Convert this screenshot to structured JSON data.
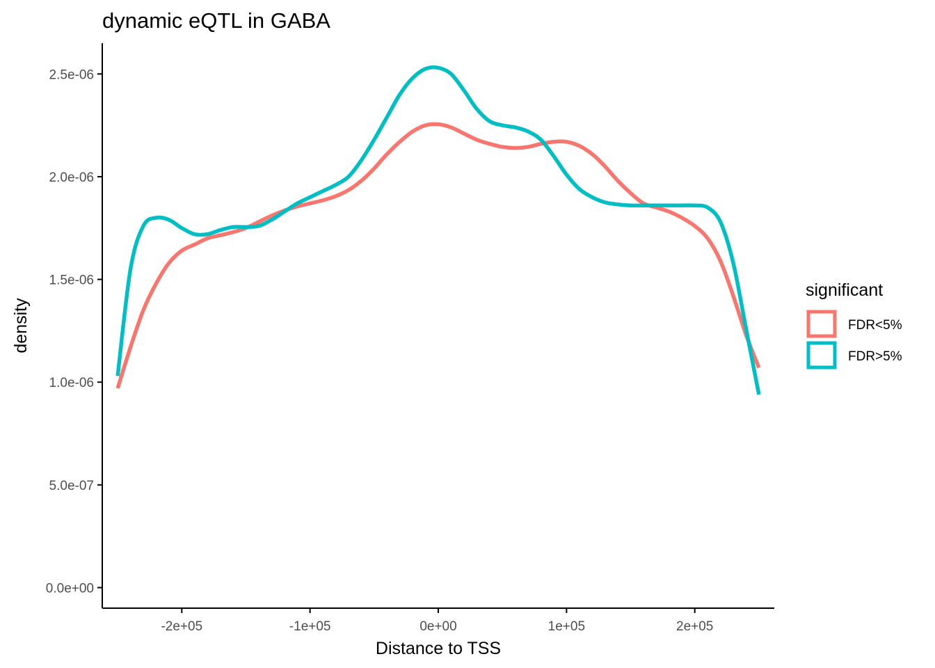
{
  "chart_data": {
    "type": "line",
    "title": "dynamic eQTL in GABA",
    "xlabel": "Distance to TSS",
    "ylabel": "density",
    "xlim": [
      -262000,
      262000
    ],
    "ylim": [
      -100000000,
      2650000000
    ],
    "x_ticks": [
      {
        "value": -200000,
        "label": "-2e+05"
      },
      {
        "value": -100000,
        "label": "-1e+05"
      },
      {
        "value": 0,
        "label": "0e+00"
      },
      {
        "value": 100000,
        "label": "1e+05"
      },
      {
        "value": 200000,
        "label": "2e+05"
      }
    ],
    "y_ticks": [
      {
        "value": 0,
        "label": "0.0e+00"
      },
      {
        "value": 500000000,
        "label": "5.0e-07"
      },
      {
        "value": 1000000000,
        "label": "1.0e-06"
      },
      {
        "value": 1500000000,
        "label": "1.5e-06"
      },
      {
        "value": 2000000000,
        "label": "2.0e-06"
      },
      {
        "value": 2500000000,
        "label": "2.5e-06"
      }
    ],
    "y_scale_note": "y values stored as density x 1e15",
    "grid": false,
    "legend": {
      "title": "significant",
      "position": "right"
    },
    "series": [
      {
        "name": "FDR<5%",
        "color": "#F8766D",
        "x": [
          -250000,
          -240000,
          -230000,
          -220000,
          -210000,
          -200000,
          -190000,
          -180000,
          -170000,
          -160000,
          -150000,
          -140000,
          -130000,
          -120000,
          -110000,
          -100000,
          -90000,
          -80000,
          -70000,
          -60000,
          -50000,
          -40000,
          -30000,
          -20000,
          -10000,
          0,
          10000,
          20000,
          30000,
          40000,
          50000,
          60000,
          70000,
          80000,
          90000,
          100000,
          110000,
          120000,
          130000,
          140000,
          150000,
          160000,
          170000,
          180000,
          190000,
          200000,
          210000,
          220000,
          230000,
          240000,
          250000
        ],
        "y": [
          970000000,
          1170000000,
          1350000000,
          1480000000,
          1580000000,
          1640000000,
          1670000000,
          1700000000,
          1715000000,
          1730000000,
          1750000000,
          1780000000,
          1810000000,
          1835000000,
          1855000000,
          1870000000,
          1885000000,
          1905000000,
          1935000000,
          1980000000,
          2040000000,
          2110000000,
          2170000000,
          2220000000,
          2250000000,
          2255000000,
          2240000000,
          2210000000,
          2180000000,
          2160000000,
          2145000000,
          2140000000,
          2145000000,
          2160000000,
          2170000000,
          2170000000,
          2150000000,
          2110000000,
          2050000000,
          1980000000,
          1920000000,
          1870000000,
          1850000000,
          1830000000,
          1800000000,
          1760000000,
          1700000000,
          1590000000,
          1420000000,
          1230000000,
          1070000000
        ]
      },
      {
        "name": "FDR>5%",
        "color": "#00BFC4",
        "x": [
          -250000,
          -240000,
          -230000,
          -220000,
          -210000,
          -200000,
          -190000,
          -180000,
          -170000,
          -160000,
          -150000,
          -140000,
          -130000,
          -120000,
          -110000,
          -100000,
          -90000,
          -80000,
          -70000,
          -60000,
          -50000,
          -40000,
          -30000,
          -20000,
          -10000,
          0,
          10000,
          20000,
          30000,
          40000,
          50000,
          60000,
          70000,
          80000,
          90000,
          100000,
          110000,
          120000,
          130000,
          140000,
          150000,
          160000,
          170000,
          180000,
          190000,
          200000,
          210000,
          220000,
          230000,
          240000,
          250000
        ],
        "y": [
          1030000000,
          1550000000,
          1760000000,
          1800000000,
          1790000000,
          1750000000,
          1720000000,
          1720000000,
          1740000000,
          1755000000,
          1755000000,
          1760000000,
          1790000000,
          1830000000,
          1870000000,
          1900000000,
          1930000000,
          1960000000,
          2000000000,
          2080000000,
          2180000000,
          2290000000,
          2400000000,
          2480000000,
          2525000000,
          2530000000,
          2500000000,
          2420000000,
          2330000000,
          2270000000,
          2250000000,
          2240000000,
          2220000000,
          2180000000,
          2100000000,
          2010000000,
          1940000000,
          1900000000,
          1875000000,
          1865000000,
          1860000000,
          1860000000,
          1860000000,
          1860000000,
          1860000000,
          1860000000,
          1850000000,
          1780000000,
          1580000000,
          1260000000,
          940000000
        ]
      }
    ]
  }
}
